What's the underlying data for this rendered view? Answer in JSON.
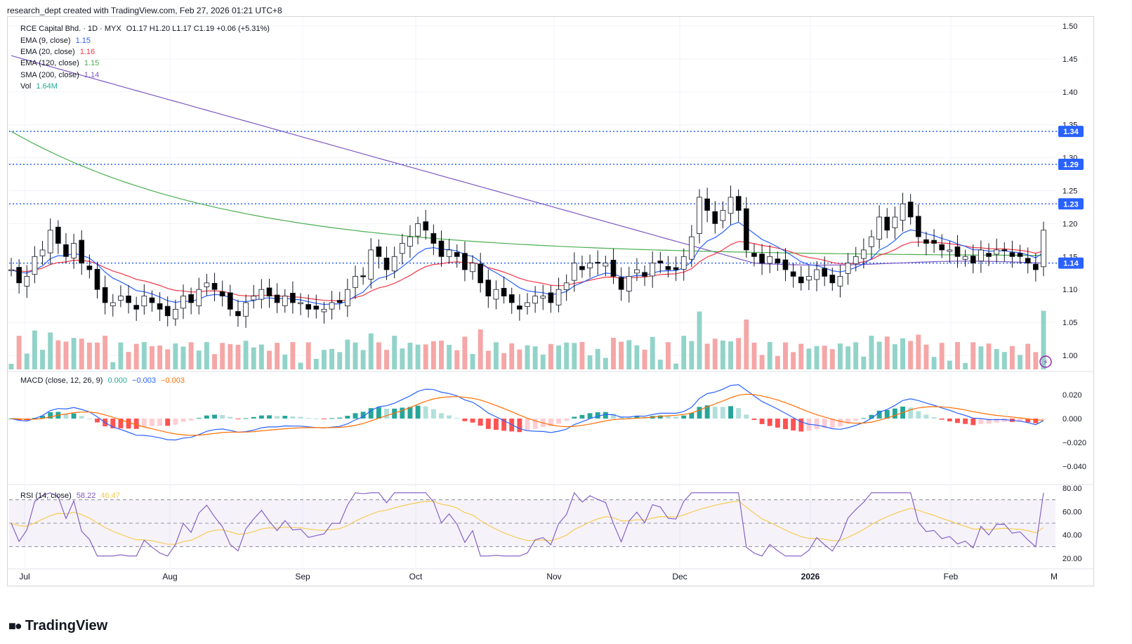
{
  "header": {
    "text": "research_dept created with TradingView.com, Feb 27, 2026 01:21 UTC+8"
  },
  "legend": {
    "symbol": "RCE Capital Bhd. · 1D · MYX",
    "ohlc": "O1.17  H1.20  L1.17  C1.19  +0.06 (+5.31%)",
    "ema9": {
      "label": "EMA (9, close)",
      "value": "1.15",
      "color": "#2962ff"
    },
    "ema20": {
      "label": "EMA (20, close)",
      "value": "1.16",
      "color": "#f23645"
    },
    "ema120": {
      "label": "EMA (120, close)",
      "value": "1.15",
      "color": "#4caf50"
    },
    "sma200": {
      "label": "SMA (200, close)",
      "value": "1.14",
      "color": "#7e57c2"
    },
    "vol": {
      "label": "Vol",
      "value": "1.64M",
      "color": "#22ab94"
    },
    "macd": {
      "label": "MACD (close, 12, 26, 9)",
      "hist": "0.000",
      "macd": "−0.003",
      "signal": "−0.003"
    },
    "rsi": {
      "label": "RSI (14, close)",
      "rsi": "58.22",
      "ma": "46.47"
    }
  },
  "logo": {
    "text": "TradingView"
  },
  "chart_data": {
    "type": "candlestick",
    "symbol": "RCE Capital Bhd.",
    "timeframe": "1D",
    "exchange": "MYX",
    "price_axis": {
      "ticks": [
        "1.50",
        "1.45",
        "1.40",
        "1.35",
        "1.30",
        "1.25",
        "1.20",
        "1.15",
        "1.10",
        "1.05",
        "1.00"
      ],
      "range": [
        0.98,
        1.51
      ]
    },
    "x_labels": [
      "Jul",
      "Aug",
      "Sep",
      "Oct",
      "Nov",
      "Dec",
      "2026",
      "Feb",
      "M"
    ],
    "horizontal_levels": [
      {
        "value": 1.34,
        "label": "1.34",
        "color": "#2962ff"
      },
      {
        "value": 1.29,
        "label": "1.29",
        "color": "#2962ff"
      },
      {
        "value": 1.23,
        "label": "1.23",
        "color": "#2962ff"
      },
      {
        "value": 1.14,
        "label": "1.14",
        "color": "#2962ff"
      }
    ],
    "closes": [
      1.13,
      1.11,
      1.12,
      1.15,
      1.16,
      1.19,
      1.17,
      1.15,
      1.17,
      1.14,
      1.13,
      1.1,
      1.08,
      1.08,
      1.09,
      1.08,
      1.07,
      1.09,
      1.08,
      1.07,
      1.06,
      1.07,
      1.09,
      1.08,
      1.1,
      1.11,
      1.1,
      1.09,
      1.07,
      1.06,
      1.08,
      1.09,
      1.1,
      1.09,
      1.08,
      1.09,
      1.08,
      1.08,
      1.07,
      1.07,
      1.07,
      1.08,
      1.08,
      1.1,
      1.12,
      1.12,
      1.16,
      1.15,
      1.13,
      1.15,
      1.17,
      1.18,
      1.2,
      1.19,
      1.17,
      1.15,
      1.16,
      1.15,
      1.13,
      1.14,
      1.11,
      1.09,
      1.1,
      1.09,
      1.08,
      1.07,
      1.08,
      1.09,
      1.09,
      1.08,
      1.1,
      1.11,
      1.14,
      1.13,
      1.14,
      1.14,
      1.14,
      1.12,
      1.1,
      1.12,
      1.13,
      1.12,
      1.14,
      1.14,
      1.13,
      1.13,
      1.15,
      1.18,
      1.24,
      1.22,
      1.2,
      1.22,
      1.24,
      1.22,
      1.16,
      1.15,
      1.14,
      1.15,
      1.14,
      1.13,
      1.12,
      1.11,
      1.12,
      1.13,
      1.12,
      1.11,
      1.12,
      1.14,
      1.15,
      1.16,
      1.18,
      1.21,
      1.19,
      1.21,
      1.23,
      1.21,
      1.18,
      1.17,
      1.17,
      1.16,
      1.16,
      1.15,
      1.15,
      1.14,
      1.16,
      1.15,
      1.16,
      1.16,
      1.15,
      1.15,
      1.14,
      1.13,
      1.19
    ],
    "ema9": {
      "name": "EMA (9, close)",
      "value": 1.15
    },
    "ema20": {
      "name": "EMA (20, close)",
      "value": 1.16
    },
    "ema120": {
      "name": "EMA (120, close)",
      "value": 1.15
    },
    "sma200": {
      "name": "SMA (200, close)",
      "value": 1.14
    },
    "volume_last": "1.64M",
    "macd": {
      "axis_ticks": [
        "0.020",
        "0.000",
        "−0.020",
        "−0.040"
      ],
      "range": [
        -0.048,
        0.026
      ],
      "macd": -0.003,
      "signal": -0.003,
      "hist": 0.0
    },
    "rsi": {
      "axis_ticks": [
        "80.00",
        "60.00",
        "40.00",
        "20.00"
      ],
      "range": [
        15,
        82
      ],
      "upper": 70,
      "middle": 50,
      "lower": 30,
      "rsi": 58.22,
      "rsi_ma": 46.47
    },
    "colors": {
      "up": "#22ab94",
      "down": "#000000",
      "ema9": "#2962ff",
      "ema20": "#f23645",
      "ema120": "#4caf50",
      "sma200": "#7e57c2",
      "vol_up": "#92d3c9",
      "vol_down": "#f5a6a6",
      "level": "#2962ff"
    }
  }
}
